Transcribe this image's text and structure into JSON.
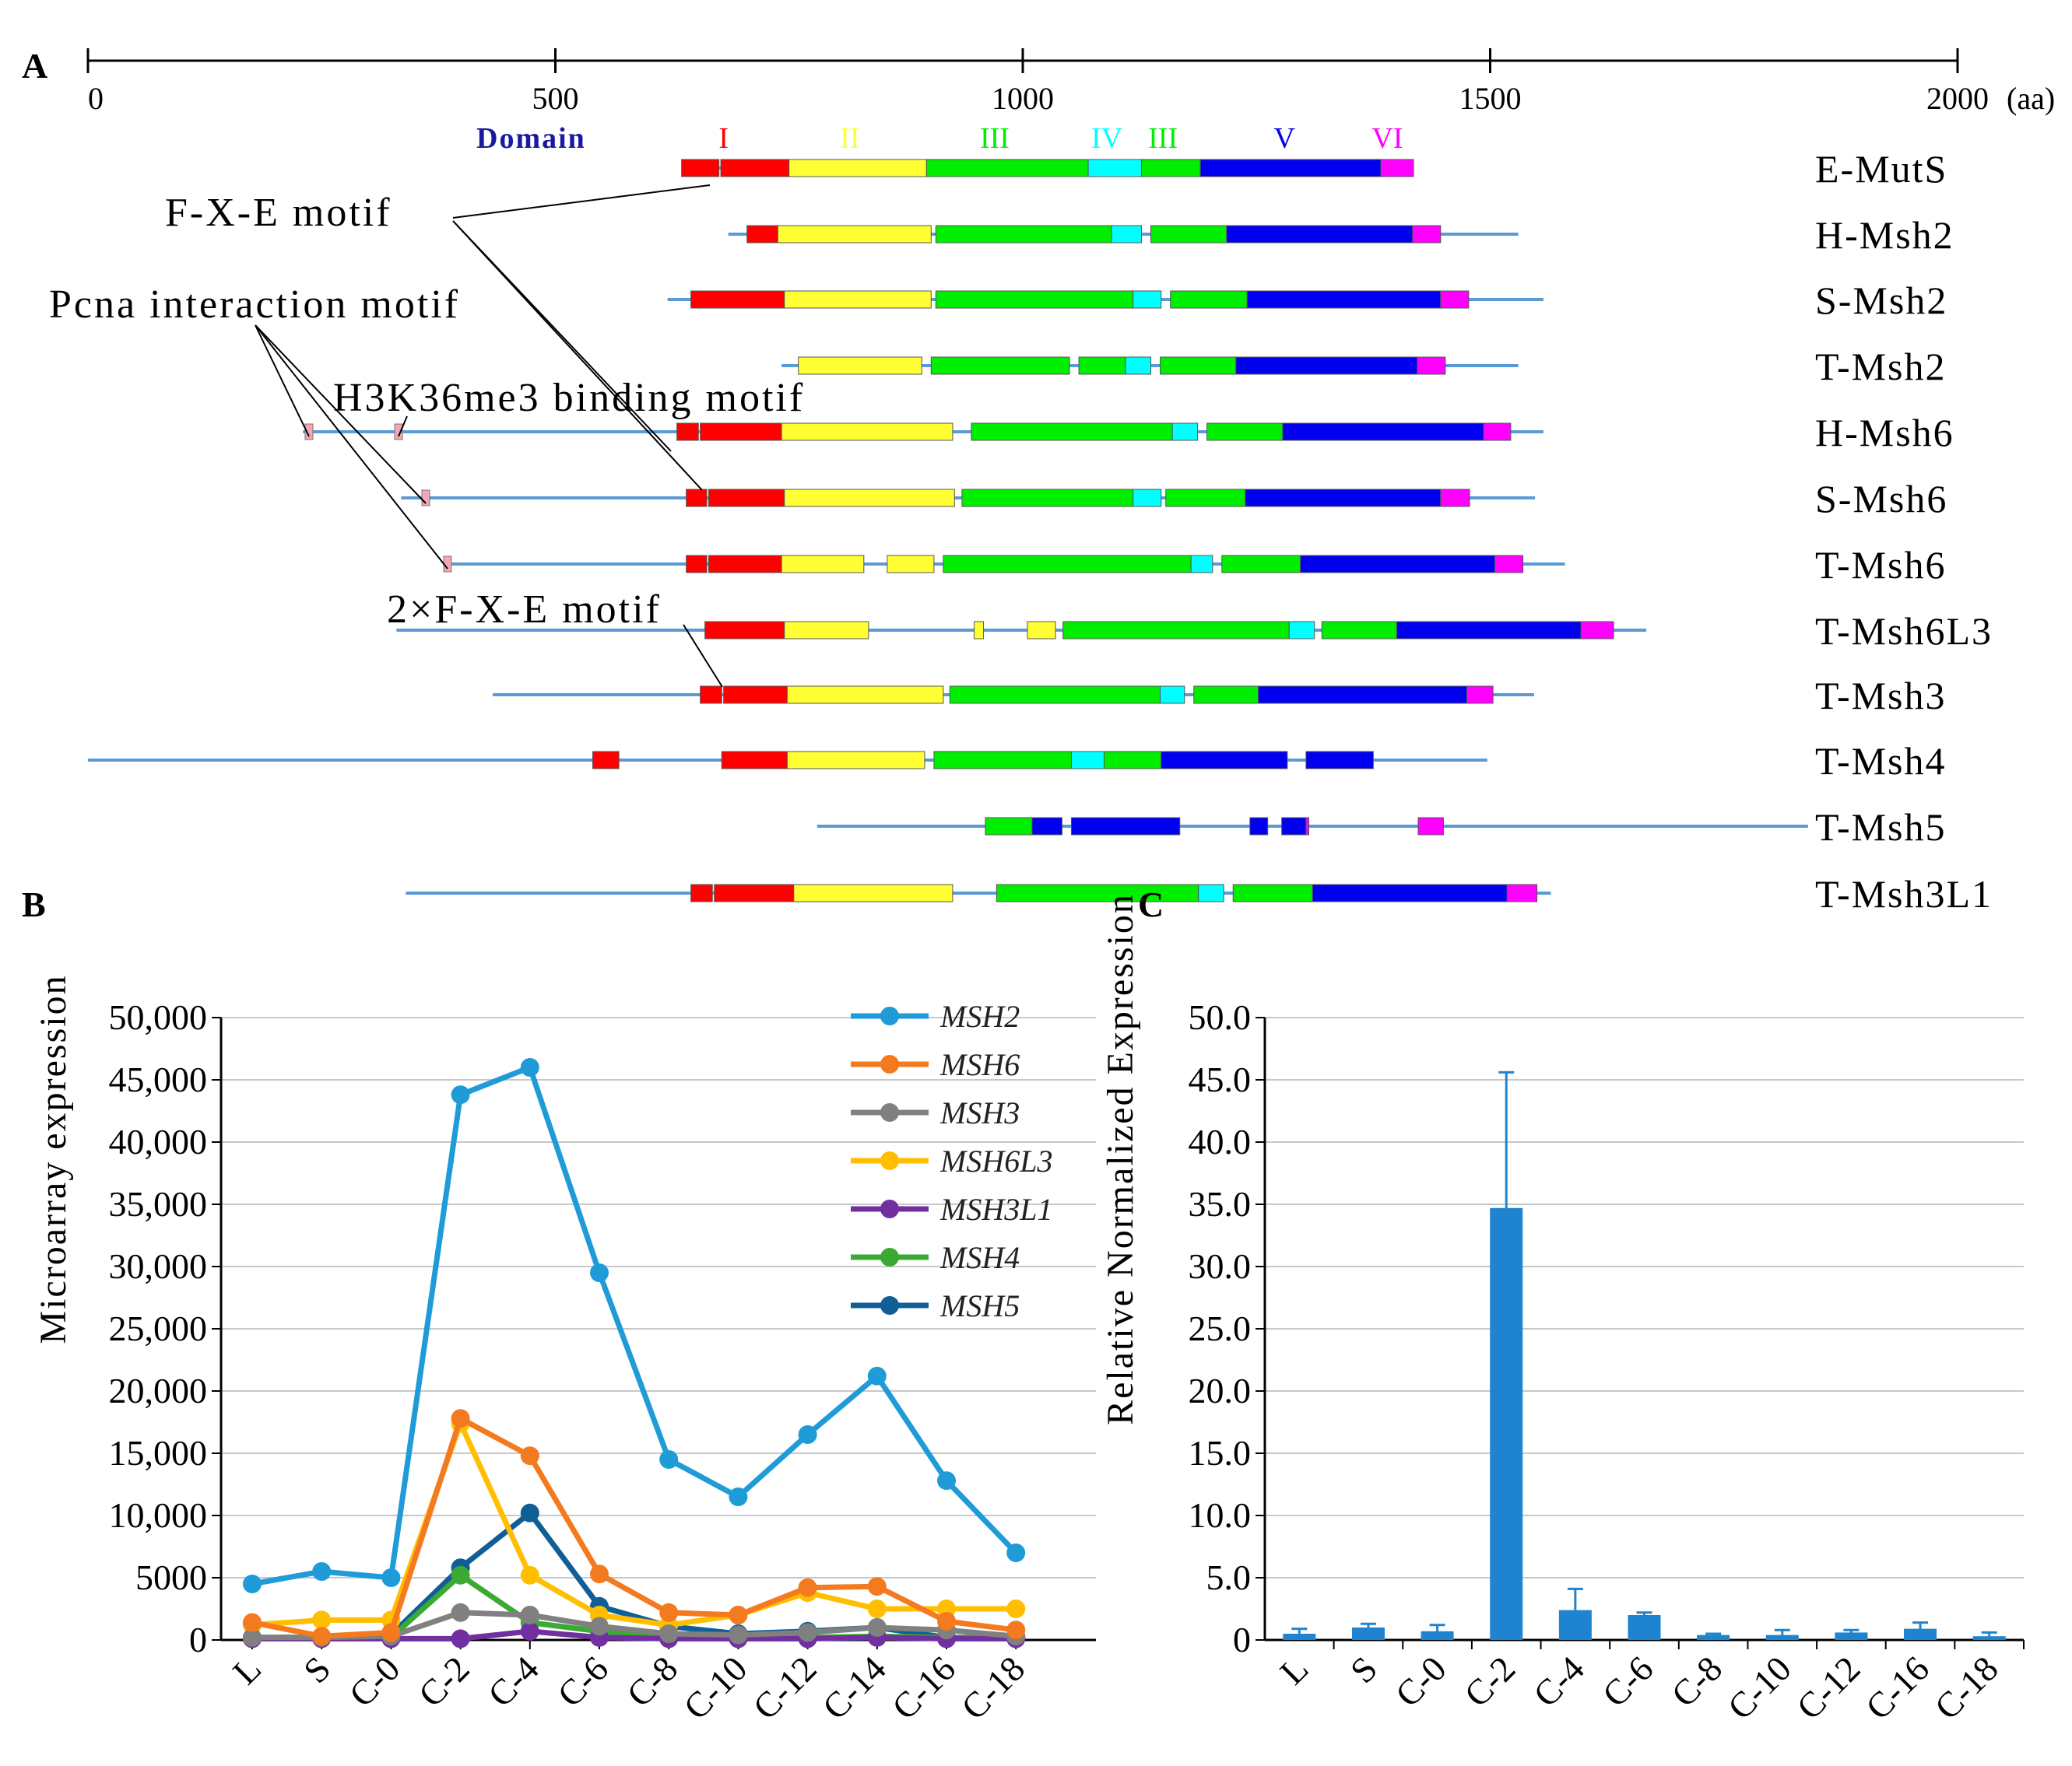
{
  "panels": {
    "a": "A",
    "b": "B",
    "c": "C"
  },
  "scale": {
    "ticks": [
      0,
      500,
      1000,
      1500,
      2000
    ],
    "unit": "(aa)"
  },
  "domain_header": {
    "title": "Domain",
    "labels": [
      {
        "text": "I",
        "at": 680,
        "color": "#ff0000"
      },
      {
        "text": "II",
        "at": 815,
        "color": "#ffff33"
      },
      {
        "text": "III",
        "at": 970,
        "color": "#00ee00"
      },
      {
        "text": "IV",
        "at": 1090,
        "color": "#00ffff"
      },
      {
        "text": "III",
        "at": 1150,
        "color": "#00ee00"
      },
      {
        "text": "V",
        "at": 1280,
        "color": "#0000ee"
      },
      {
        "text": "VI",
        "at": 1390,
        "color": "#ff00ff"
      }
    ]
  },
  "colors": {
    "I": "#ff0000",
    "II": "#ffff33",
    "III": "#00ee00",
    "IV": "#00ffff",
    "V": "#0000ee",
    "VI": "#ff00ff",
    "line": "#5b9bd5",
    "motif": "#f4a6b4",
    "msh2": "#1f9bd7",
    "msh6": "#f47a20",
    "msh3": "#808080",
    "msh6l3": "#ffbf00",
    "msh3l1": "#7030a0",
    "msh4": "#3aaa35",
    "msh5": "#0f5e96",
    "bar": "#1f84d0"
  },
  "annotations": {
    "fxe": "F-X-E motif",
    "pcna": "Pcna interaction motif",
    "h3k36": "H3K36me3 binding motif",
    "fxe2": "2×F-X-E motif"
  },
  "proteins": [
    {
      "name": "E-MutS",
      "line": [
        635,
        1410
      ],
      "segs": [
        [
          635,
          675,
          "I"
        ],
        [
          677,
          750,
          "I"
        ],
        [
          750,
          897,
          "II"
        ],
        [
          897,
          1070,
          "III"
        ],
        [
          1070,
          1127,
          "IV"
        ],
        [
          1127,
          1190,
          "III"
        ],
        [
          1190,
          1383,
          "V"
        ],
        [
          1383,
          1418,
          "VI"
        ]
      ]
    },
    {
      "name": "H-Msh2",
      "line": [
        685,
        1530
      ],
      "segs": [
        [
          705,
          738,
          "I"
        ],
        [
          738,
          902,
          "II"
        ],
        [
          907,
          1095,
          "III"
        ],
        [
          1095,
          1127,
          "IV"
        ],
        [
          1137,
          1218,
          "III"
        ],
        [
          1218,
          1417,
          "V"
        ],
        [
          1417,
          1447,
          "VI"
        ]
      ]
    },
    {
      "name": "S-Msh2",
      "line": [
        620,
        1557
      ],
      "segs": [
        [
          645,
          745,
          "I"
        ],
        [
          745,
          902,
          "II"
        ],
        [
          907,
          1118,
          "III"
        ],
        [
          1118,
          1148,
          "IV"
        ],
        [
          1158,
          1240,
          "III"
        ],
        [
          1240,
          1447,
          "V"
        ],
        [
          1447,
          1477,
          "VI"
        ]
      ]
    },
    {
      "name": "T-Msh2",
      "line": [
        742,
        1530
      ],
      "segs": [
        [
          760,
          892,
          "II"
        ],
        [
          902,
          1050,
          "III"
        ],
        [
          1060,
          1110,
          "III"
        ],
        [
          1110,
          1137,
          "IV"
        ],
        [
          1147,
          1228,
          "III"
        ],
        [
          1228,
          1422,
          "V"
        ],
        [
          1422,
          1452,
          "VI"
        ]
      ]
    },
    {
      "name": "H-Msh6",
      "line": [
        230,
        1557
      ],
      "segs": [
        [
          630,
          653,
          "I"
        ],
        [
          655,
          742,
          "I"
        ],
        [
          742,
          925,
          "II"
        ],
        [
          945,
          1160,
          "III"
        ],
        [
          1160,
          1187,
          "IV"
        ],
        [
          1197,
          1278,
          "III"
        ],
        [
          1278,
          1493,
          "V"
        ],
        [
          1493,
          1522,
          "VI"
        ]
      ]
    },
    {
      "name": "S-Msh6",
      "line": [
        335,
        1548
      ],
      "segs": [
        [
          640,
          662,
          "I"
        ],
        [
          664,
          745,
          "I"
        ],
        [
          745,
          927,
          "II"
        ],
        [
          935,
          1118,
          "III"
        ],
        [
          1118,
          1148,
          "IV"
        ],
        [
          1153,
          1238,
          "III"
        ],
        [
          1238,
          1447,
          "V"
        ],
        [
          1447,
          1478,
          "VI"
        ]
      ]
    },
    {
      "name": "T-Msh6",
      "line": [
        380,
        1580
      ],
      "segs": [
        [
          640,
          662,
          "I"
        ],
        [
          664,
          742,
          "I"
        ],
        [
          742,
          830,
          "II"
        ],
        [
          855,
          905,
          "II"
        ],
        [
          915,
          1180,
          "III"
        ],
        [
          1180,
          1203,
          "IV"
        ],
        [
          1213,
          1297,
          "III"
        ],
        [
          1297,
          1505,
          "V"
        ],
        [
          1505,
          1535,
          "VI"
        ]
      ]
    },
    {
      "name": "T-Msh6L3",
      "line": [
        330,
        1667
      ],
      "segs": [
        [
          660,
          745,
          "I"
        ],
        [
          745,
          835,
          "II"
        ],
        [
          948,
          958,
          "II"
        ],
        [
          1005,
          1035,
          "II"
        ],
        [
          1043,
          1285,
          "III"
        ],
        [
          1285,
          1312,
          "IV"
        ],
        [
          1320,
          1400,
          "III"
        ],
        [
          1400,
          1597,
          "V"
        ],
        [
          1597,
          1632,
          "VI"
        ]
      ]
    },
    {
      "name": "T-Msh3",
      "line": [
        433,
        1547
      ],
      "segs": [
        [
          655,
          678,
          "I"
        ],
        [
          680,
          748,
          "I"
        ],
        [
          748,
          915,
          "II"
        ],
        [
          922,
          1147,
          "III"
        ],
        [
          1147,
          1173,
          "IV"
        ],
        [
          1183,
          1252,
          "III"
        ],
        [
          1252,
          1475,
          "V"
        ],
        [
          1475,
          1503,
          "VI"
        ]
      ]
    },
    {
      "name": "T-Msh4",
      "line": [
        0,
        1497
      ],
      "segs": [
        [
          540,
          568,
          "I"
        ],
        [
          678,
          748,
          "I"
        ],
        [
          748,
          895,
          "II"
        ],
        [
          905,
          1052,
          "III"
        ],
        [
          1052,
          1087,
          "IV"
        ],
        [
          1087,
          1148,
          "III"
        ],
        [
          1148,
          1283,
          "V"
        ],
        [
          1303,
          1375,
          "V"
        ]
      ]
    },
    {
      "name": "T-Msh5",
      "line": [
        780,
        1840
      ],
      "segs": [
        [
          960,
          1010,
          "III"
        ],
        [
          1010,
          1042,
          "V"
        ],
        [
          1052,
          1168,
          "V"
        ],
        [
          1243,
          1262,
          "V"
        ],
        [
          1277,
          1303,
          "V"
        ],
        [
          1303,
          1306,
          "VI"
        ],
        [
          1423,
          1450,
          "VI"
        ]
      ]
    },
    {
      "name": "T-Msh3L1",
      "line": [
        340,
        1565
      ],
      "segs": [
        [
          645,
          668,
          "I"
        ],
        [
          670,
          755,
          "I"
        ],
        [
          755,
          925,
          "II"
        ],
        [
          972,
          1188,
          "III"
        ],
        [
          1188,
          1215,
          "IV"
        ],
        [
          1225,
          1310,
          "III"
        ],
        [
          1310,
          1518,
          "V"
        ],
        [
          1518,
          1550,
          "VI"
        ]
      ]
    }
  ],
  "chart_data": [
    {
      "type": "line",
      "panel": "B",
      "ylabel": "Microarray expression",
      "xlabel": "",
      "ylim": [
        0,
        50000
      ],
      "yticks": [
        0,
        5000,
        10000,
        15000,
        20000,
        25000,
        30000,
        35000,
        40000,
        45000,
        50000
      ],
      "ytick_labels": [
        "0",
        "5000",
        "10,000",
        "15,000",
        "20,000",
        "25,000",
        "30,000",
        "35,000",
        "40,000",
        "45,000",
        "50,000"
      ],
      "grid": true,
      "legend": "top-right",
      "categories": [
        "L",
        "S",
        "C-0",
        "C-2",
        "C-4",
        "C-6",
        "C-8",
        "C-10",
        "C-12",
        "C-14",
        "C-16",
        "C-18"
      ],
      "series": [
        {
          "name": "MSH2",
          "key": "msh2",
          "values": [
            4500,
            5500,
            5000,
            43800,
            46000,
            29500,
            14500,
            11500,
            16500,
            21200,
            12800,
            7000
          ]
        },
        {
          "name": "MSH6",
          "key": "msh6",
          "values": [
            1400,
            300,
            600,
            17800,
            14800,
            5300,
            2200,
            2000,
            4200,
            4300,
            1500,
            800
          ]
        },
        {
          "name": "MSH3",
          "key": "msh3",
          "values": [
            200,
            200,
            300,
            2200,
            2000,
            1100,
            500,
            400,
            600,
            1000,
            800,
            300
          ]
        },
        {
          "name": "MSH6L3",
          "key": "msh6l3",
          "values": [
            1200,
            1600,
            1600,
            17400,
            5200,
            2000,
            1200,
            2000,
            3800,
            2500,
            2500,
            2500
          ]
        },
        {
          "name": "MSH3L1",
          "key": "msh3l1",
          "values": [
            100,
            100,
            100,
            100,
            700,
            200,
            100,
            100,
            100,
            200,
            100,
            100
          ]
        },
        {
          "name": "MSH4",
          "key": "msh4",
          "values": [
            200,
            200,
            200,
            5200,
            1400,
            700,
            200,
            100,
            200,
            300,
            200,
            200
          ]
        },
        {
          "name": "MSH5",
          "key": "msh5",
          "values": [
            200,
            200,
            400,
            5800,
            10200,
            2700,
            1100,
            500,
            700,
            1000,
            200,
            200
          ]
        }
      ]
    },
    {
      "type": "bar",
      "panel": "C",
      "ylabel": "Relative Normalized Expression",
      "xlabel": "",
      "ylim": [
        0,
        50
      ],
      "yticks": [
        0,
        5,
        10,
        15,
        20,
        25,
        30,
        35,
        40,
        45,
        50
      ],
      "ytick_labels": [
        "0",
        "5.0",
        "10.0",
        "15.0",
        "20.0",
        "25.0",
        "30.0",
        "35.0",
        "40.0",
        "45.0",
        "50.0"
      ],
      "grid": true,
      "categories": [
        "L",
        "S",
        "C-0",
        "C-2",
        "C-4",
        "C-6",
        "C-8",
        "C-10",
        "C-12",
        "C-16",
        "C-18"
      ],
      "values": [
        0.5,
        1.0,
        0.7,
        34.7,
        2.4,
        2.0,
        0.4,
        0.4,
        0.6,
        0.9,
        0.3
      ],
      "errors": [
        0.4,
        0.3,
        0.5,
        10.9,
        1.7,
        0.2,
        0.1,
        0.4,
        0.2,
        0.5,
        0.3
      ]
    }
  ]
}
